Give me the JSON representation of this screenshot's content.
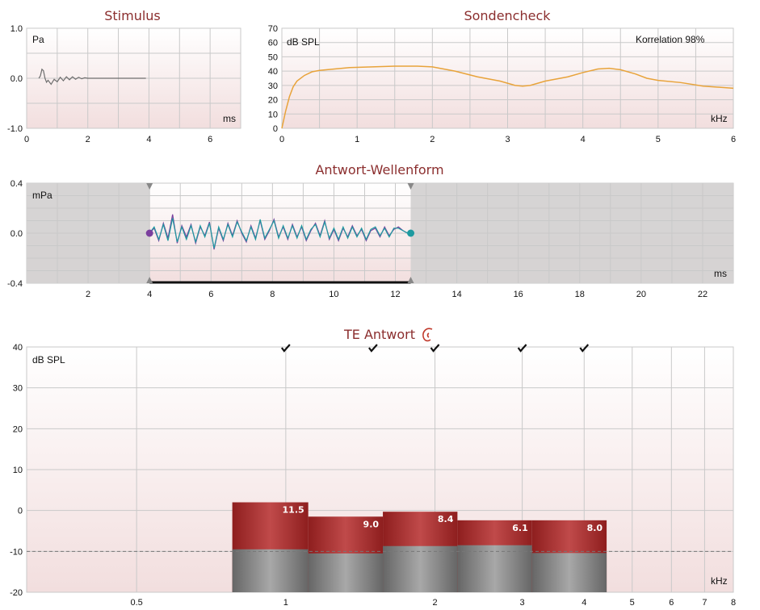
{
  "colors": {
    "title": "#8b2e2e",
    "grid": "#c9c9c9",
    "response_line": "#e8a33a",
    "stimulus_line": "#6e6e6e",
    "wave_a": "#7b3f9e",
    "wave_b": "#1e9aa0",
    "bar_signal": "#b23a3a",
    "bar_noise": "#8a8a8a",
    "shade": "#d8d6d6"
  },
  "chart_data": [
    {
      "id": "stimulus",
      "type": "line",
      "title": "Stimulus",
      "ylabel": "Pa",
      "xlabel": "ms",
      "xlim": [
        0,
        7
      ],
      "ylim": [
        -1.0,
        1.0
      ],
      "x_ticks": [
        "0",
        "2",
        "4",
        "6"
      ],
      "y_ticks": [
        "1.0",
        "0.0",
        "-1.0"
      ],
      "grid": true,
      "series": [
        {
          "x": [
            0.4,
            0.45,
            0.5,
            0.55,
            0.6,
            0.65,
            0.7,
            0.8,
            0.9,
            1.0,
            1.1,
            1.2,
            1.3,
            1.4,
            1.5,
            1.6,
            1.7,
            1.8,
            1.9,
            2.0,
            2.2,
            2.5,
            3.0,
            3.5,
            3.9
          ],
          "y": [
            0.0,
            0.05,
            0.18,
            0.15,
            0.0,
            -0.08,
            -0.04,
            -0.12,
            -0.02,
            -0.07,
            0.02,
            -0.05,
            0.03,
            -0.03,
            0.03,
            -0.02,
            0.02,
            -0.01,
            0.01,
            0.0,
            0.0,
            0.0,
            0.0,
            0.0,
            0.0
          ]
        }
      ]
    },
    {
      "id": "sondencheck",
      "type": "line",
      "title": "Sondencheck",
      "ylabel": "dB SPL",
      "xlabel": "kHz",
      "annotation": "Korrelation 98%",
      "xlim": [
        0,
        6
      ],
      "ylim": [
        0,
        70
      ],
      "x_ticks": [
        "0",
        "1",
        "2",
        "3",
        "4",
        "5",
        "6"
      ],
      "y_ticks": [
        "70",
        "60",
        "50",
        "40",
        "30",
        "20",
        "10",
        "0"
      ],
      "grid": true,
      "series": [
        {
          "x": [
            0,
            0.05,
            0.1,
            0.15,
            0.2,
            0.3,
            0.4,
            0.5,
            0.7,
            0.9,
            1.2,
            1.5,
            1.8,
            2.0,
            2.3,
            2.6,
            2.9,
            3.1,
            3.2,
            3.3,
            3.5,
            3.8,
            4.0,
            4.2,
            4.35,
            4.5,
            4.7,
            4.85,
            5.0,
            5.3,
            5.6,
            6.0
          ],
          "y": [
            0,
            12,
            22,
            29,
            33,
            37,
            39.5,
            40.5,
            41.5,
            42.5,
            43,
            43.5,
            43.5,
            43,
            40,
            36,
            33,
            30,
            29.5,
            30,
            33,
            36,
            39,
            41.5,
            42,
            41,
            38,
            35,
            33.5,
            32,
            29.5,
            28
          ]
        }
      ]
    },
    {
      "id": "antwort-wellenform",
      "type": "line",
      "title": "Antwort-Wellenform",
      "ylabel": "mPa",
      "xlabel": "ms",
      "xlim": [
        0,
        23
      ],
      "ylim": [
        -0.4,
        0.4
      ],
      "x_ticks": [
        "2",
        "4",
        "6",
        "8",
        "10",
        "12",
        "14",
        "16",
        "18",
        "20",
        "22"
      ],
      "y_ticks": [
        "0.4",
        "0.0",
        "-0.4"
      ],
      "window": [
        4,
        12.5
      ],
      "grid": true,
      "series": [
        {
          "x": [
            4.0,
            4.15,
            4.3,
            4.45,
            4.6,
            4.75,
            4.9,
            5.05,
            5.2,
            5.35,
            5.5,
            5.65,
            5.8,
            5.95,
            6.1,
            6.25,
            6.4,
            6.55,
            6.7,
            6.85,
            7.0,
            7.15,
            7.3,
            7.45,
            7.6,
            7.75,
            7.9,
            8.05,
            8.2,
            8.35,
            8.5,
            8.65,
            8.8,
            8.95,
            9.1,
            9.25,
            9.4,
            9.55,
            9.7,
            9.85,
            10.0,
            10.15,
            10.3,
            10.45,
            10.6,
            10.75,
            10.9,
            11.05,
            11.2,
            11.35,
            11.5,
            11.65,
            11.8,
            11.95,
            12.1,
            12.25,
            12.4
          ],
          "y": [
            0.0,
            0.04,
            -0.06,
            0.08,
            -0.04,
            0.15,
            -0.08,
            0.06,
            -0.03,
            0.07,
            -0.08,
            0.05,
            -0.02,
            0.09,
            -0.13,
            0.04,
            -0.06,
            0.08,
            -0.02,
            0.1,
            0.0,
            -0.07,
            0.06,
            -0.04,
            0.1,
            -0.05,
            0.02,
            0.11,
            -0.03,
            0.05,
            -0.05,
            0.07,
            -0.03,
            0.05,
            -0.06,
            0.02,
            0.08,
            -0.02,
            0.1,
            -0.05,
            0.03,
            -0.06,
            0.04,
            -0.03,
            0.06,
            -0.02,
            0.03,
            -0.06,
            0.02,
            0.04,
            -0.03,
            0.05,
            -0.02,
            0.03,
            0.05,
            0.02,
            0.0
          ]
        },
        {
          "x": [
            4.0,
            4.15,
            4.3,
            4.45,
            4.6,
            4.75,
            4.9,
            5.05,
            5.2,
            5.35,
            5.5,
            5.65,
            5.8,
            5.95,
            6.1,
            6.25,
            6.4,
            6.55,
            6.7,
            6.85,
            7.0,
            7.15,
            7.3,
            7.45,
            7.6,
            7.75,
            7.9,
            8.05,
            8.2,
            8.35,
            8.5,
            8.65,
            8.8,
            8.95,
            9.1,
            9.25,
            9.4,
            9.55,
            9.7,
            9.85,
            10.0,
            10.15,
            10.3,
            10.45,
            10.6,
            10.75,
            10.9,
            11.05,
            11.2,
            11.35,
            11.5,
            11.65,
            11.8,
            11.95,
            12.1,
            12.25,
            12.4
          ],
          "y": [
            0.0,
            0.05,
            -0.05,
            0.07,
            -0.06,
            0.12,
            -0.07,
            0.05,
            -0.05,
            0.06,
            -0.07,
            0.06,
            -0.03,
            0.08,
            -0.12,
            0.05,
            -0.05,
            0.07,
            -0.03,
            0.09,
            0.01,
            -0.06,
            0.05,
            -0.05,
            0.11,
            -0.04,
            0.03,
            0.1,
            -0.04,
            0.06,
            -0.04,
            0.06,
            -0.04,
            0.06,
            -0.05,
            0.03,
            0.07,
            -0.03,
            0.09,
            -0.04,
            0.04,
            -0.05,
            0.05,
            -0.04,
            0.05,
            -0.03,
            0.04,
            -0.05,
            0.03,
            0.05,
            -0.02,
            0.04,
            -0.03,
            0.04,
            0.04,
            0.02,
            0.0
          ]
        }
      ]
    },
    {
      "id": "te-antwort",
      "type": "bar",
      "title": "TE Antwort",
      "ylabel": "dB SPL",
      "xlabel": "kHz",
      "xscale": "log",
      "xlim": [
        0.3,
        8
      ],
      "ylim": [
        -20,
        40
      ],
      "x_ticks": [
        "0.5",
        "1",
        "2",
        "3",
        "4",
        "5",
        "6",
        "7",
        "8"
      ],
      "y_ticks": [
        "40",
        "30",
        "20",
        "10",
        "0",
        "-10",
        "-20"
      ],
      "reference_line": -10,
      "check_marks": [
        1,
        1.5,
        2,
        3,
        4
      ],
      "bands": [
        {
          "from": 0.78,
          "to": 1.11,
          "signal": 2.0,
          "noise": -9.5,
          "label": "11.5"
        },
        {
          "from": 1.11,
          "to": 1.57,
          "signal": -1.5,
          "noise": -10.5,
          "label": "9.0"
        },
        {
          "from": 1.57,
          "to": 2.22,
          "signal": -0.3,
          "noise": -8.7,
          "label": "8.4"
        },
        {
          "from": 2.22,
          "to": 3.14,
          "signal": -2.4,
          "noise": -8.5,
          "label": "6.1"
        },
        {
          "from": 3.14,
          "to": 4.44,
          "signal": -2.4,
          "noise": -10.4,
          "label": "8.0"
        }
      ]
    }
  ]
}
